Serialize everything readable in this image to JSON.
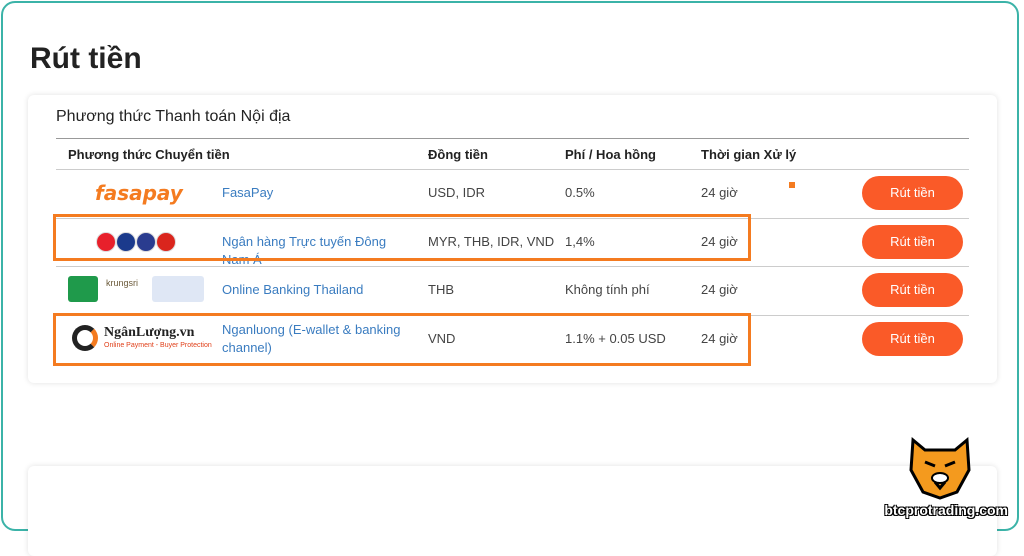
{
  "page_title": "Rút tiền",
  "section": {
    "title": "Phương thức Thanh toán Nội địa",
    "table": {
      "headers": [
        "Phương thức Chuyển tiền",
        "Đồng tiền",
        "Phí / Hoa hồng",
        "Thời gian Xử lý"
      ],
      "rows": [
        {
          "logo": "fasapay",
          "method": "FasaPay",
          "currency": "USD, IDR",
          "fee": "0.5%",
          "time": "24 giờ",
          "action": "Rút tiền"
        },
        {
          "method": "Ngân hàng Trực tuyến Đông Nam Á",
          "currency": "MYR, THB, IDR, VND",
          "fee": "1,4%",
          "time": "24 giờ",
          "action": "Rút tiền"
        },
        {
          "logo": "krungsri",
          "method": "Online Banking Thailand",
          "currency": "THB",
          "fee": "Không tính phí",
          "time": "24 giờ",
          "action": "Rút tiền"
        },
        {
          "logo": "NgânLượng.vn",
          "logo_subtitle": "Online Payment - Buyer Protection",
          "method": "Nganluong (E-wallet & banking channel)",
          "currency": "VND",
          "fee": "1.1% + 0.05 USD",
          "time": "24 giờ",
          "action": "Rút tiền"
        }
      ]
    }
  },
  "watermark": "btcprotrading.com"
}
